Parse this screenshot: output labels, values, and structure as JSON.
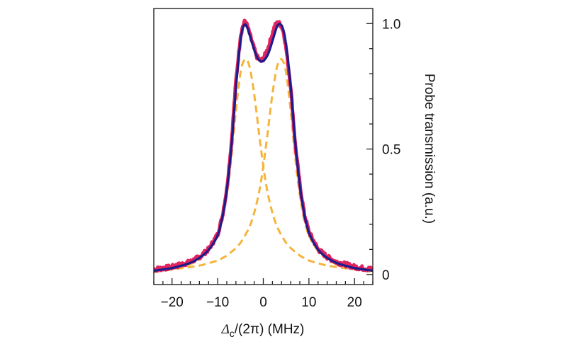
{
  "chart_data": {
    "type": "line",
    "xlabel": {
      "symbol": "Δ",
      "subscript": "c",
      "rest": "/(2π) (MHz)"
    },
    "ylabel": "Probe transmission (a.u.)",
    "xlim": [
      -24,
      24
    ],
    "ylim": [
      -0.04,
      1.06
    ],
    "x_ticks_major": [
      -20,
      -10,
      0,
      10,
      20
    ],
    "x_tick_labels": [
      "−20",
      "−10",
      "0",
      "10",
      "20"
    ],
    "x_ticks_minor_step": 2,
    "y_ticks_major": [
      0,
      0.5,
      1.0
    ],
    "y_tick_labels": [
      "0",
      "0.5",
      "1.0"
    ],
    "y_ticks_minor_step": 0.1,
    "y_axis_side": "right",
    "grid": false,
    "series": [
      {
        "role": "measured",
        "color": "#e0245e",
        "style": "noisy-thick",
        "x": [
          -24,
          -22,
          -20,
          -18,
          -16,
          -14,
          -12,
          -10,
          -9,
          -8,
          -7,
          -6,
          -5,
          -4.5,
          -4,
          -3.5,
          -3,
          -2.5,
          -2,
          -1.5,
          -1,
          -0.5,
          0,
          0.5,
          1,
          1.5,
          2,
          2.5,
          3,
          3.5,
          4,
          4.5,
          5,
          6,
          7,
          8,
          9,
          10,
          12,
          14,
          16,
          18,
          20,
          22,
          24
        ],
        "values": [
          0.02,
          0.025,
          0.03,
          0.04,
          0.05,
          0.07,
          0.1,
          0.16,
          0.23,
          0.34,
          0.52,
          0.77,
          0.95,
          0.99,
          1.01,
          0.99,
          0.96,
          0.93,
          0.9,
          0.87,
          0.86,
          0.85,
          0.86,
          0.88,
          0.9,
          0.93,
          0.96,
          0.99,
          1.0,
          1.0,
          0.99,
          0.96,
          0.9,
          0.75,
          0.52,
          0.36,
          0.24,
          0.17,
          0.1,
          0.07,
          0.05,
          0.04,
          0.03,
          0.025,
          0.02
        ]
      },
      {
        "role": "fit-total",
        "color": "#1c1c8c",
        "style": "solid",
        "x": [
          -24,
          -22,
          -20,
          -18,
          -16,
          -14,
          -12,
          -10,
          -9,
          -8,
          -7,
          -6,
          -5,
          -4.5,
          -4,
          -3.5,
          -3,
          -2.5,
          -2,
          -1.5,
          -1,
          -0.5,
          0,
          0.5,
          1,
          1.5,
          2,
          2.5,
          3,
          3.5,
          4,
          4.5,
          5,
          6,
          7,
          8,
          9,
          10,
          12,
          14,
          16,
          18,
          20,
          22,
          24
        ],
        "values": [
          0.015,
          0.02,
          0.025,
          0.035,
          0.045,
          0.065,
          0.095,
          0.15,
          0.22,
          0.33,
          0.5,
          0.75,
          0.94,
          0.985,
          1.0,
          0.985,
          0.955,
          0.925,
          0.895,
          0.87,
          0.855,
          0.848,
          0.85,
          0.86,
          0.875,
          0.9,
          0.93,
          0.96,
          0.99,
          1.0,
          0.995,
          0.97,
          0.92,
          0.76,
          0.52,
          0.35,
          0.235,
          0.16,
          0.095,
          0.065,
          0.045,
          0.035,
          0.025,
          0.02,
          0.015
        ]
      },
      {
        "role": "component-left",
        "color": "#f5b43c",
        "style": "dashed",
        "x": [
          -24,
          -22,
          -20,
          -18,
          -16,
          -14,
          -12,
          -10,
          -9,
          -8,
          -7,
          -6,
          -5,
          -4.5,
          -4,
          -3.5,
          -3,
          -2.5,
          -2,
          -1.5,
          -1,
          -0.5,
          0,
          0.5,
          1,
          1.5,
          2,
          2.5,
          3,
          4,
          5,
          6,
          7,
          8,
          9,
          10,
          12,
          14,
          16,
          18,
          20,
          22,
          24
        ],
        "values": [
          0.01,
          0.015,
          0.02,
          0.03,
          0.04,
          0.06,
          0.09,
          0.15,
          0.21,
          0.31,
          0.46,
          0.66,
          0.81,
          0.845,
          0.86,
          0.855,
          0.83,
          0.78,
          0.72,
          0.65,
          0.57,
          0.5,
          0.43,
          0.37,
          0.32,
          0.28,
          0.245,
          0.215,
          0.19,
          0.155,
          0.125,
          0.105,
          0.09,
          0.075,
          0.065,
          0.055,
          0.045,
          0.035,
          0.03,
          0.025,
          0.02,
          0.015,
          0.01
        ]
      },
      {
        "role": "component-right",
        "color": "#f5b43c",
        "style": "dashed",
        "x": [
          -24,
          -22,
          -20,
          -18,
          -16,
          -14,
          -12,
          -10,
          -9,
          -8,
          -7,
          -6,
          -5,
          -4,
          -3,
          -2.5,
          -2,
          -1.5,
          -1,
          -0.5,
          0,
          0.5,
          1,
          1.5,
          2,
          2.5,
          3,
          3.5,
          4,
          4.5,
          5,
          6,
          7,
          8,
          9,
          10,
          12,
          14,
          16,
          18,
          20,
          22,
          24
        ],
        "values": [
          0.01,
          0.015,
          0.02,
          0.025,
          0.03,
          0.035,
          0.045,
          0.055,
          0.065,
          0.075,
          0.09,
          0.105,
          0.125,
          0.155,
          0.19,
          0.215,
          0.245,
          0.28,
          0.32,
          0.37,
          0.43,
          0.5,
          0.57,
          0.65,
          0.72,
          0.78,
          0.83,
          0.855,
          0.86,
          0.845,
          0.81,
          0.66,
          0.46,
          0.31,
          0.21,
          0.15,
          0.09,
          0.06,
          0.04,
          0.03,
          0.02,
          0.015,
          0.01
        ]
      }
    ]
  }
}
